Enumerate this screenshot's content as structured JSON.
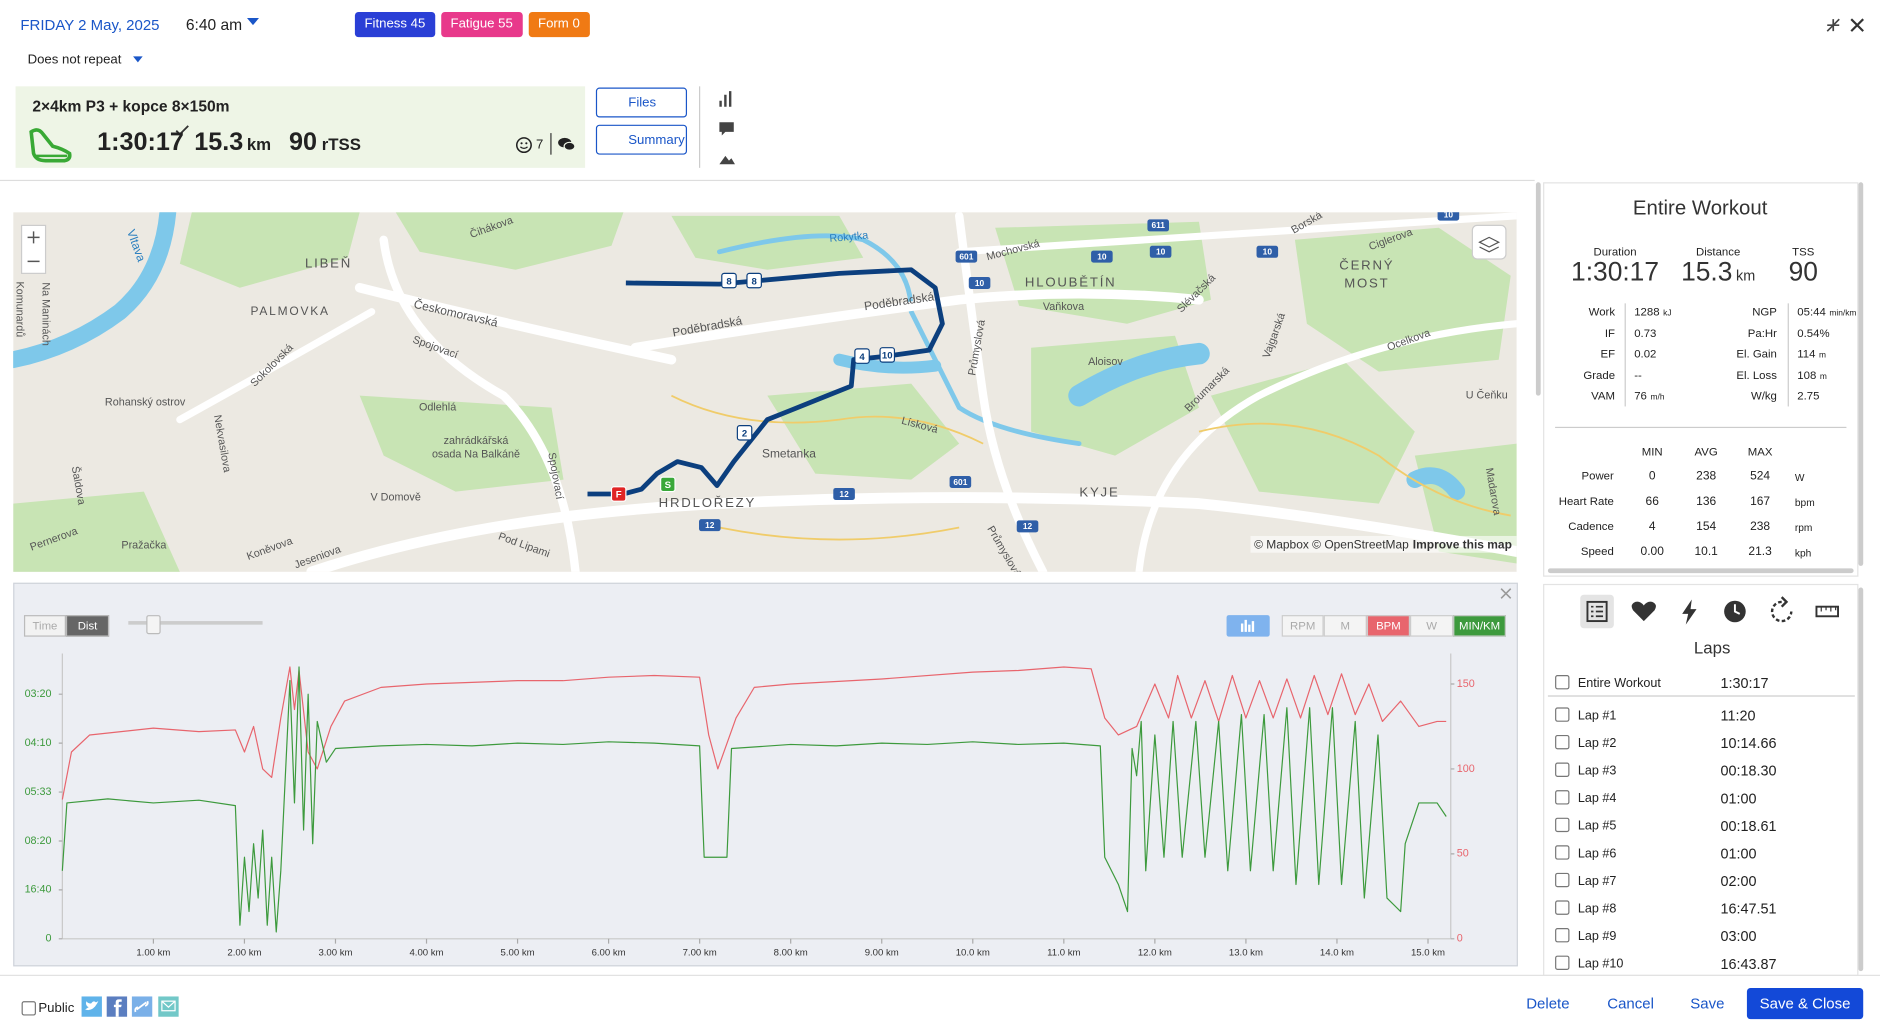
{
  "header": {
    "date": "FRIDAY 2 May, 2025",
    "time": "6:40 am",
    "repeat": "Does not repeat",
    "badges": [
      {
        "label": "Fitness 45",
        "color": "#2a3fd6"
      },
      {
        "label": "Fatigue 55",
        "color": "#e8398b"
      },
      {
        "label": "Form 0",
        "color": "#f07a14"
      }
    ]
  },
  "workout": {
    "title": "2×4km P3 + kopce 8×150m",
    "duration": "1:30:17",
    "distance": "15.3",
    "distance_unit": "km",
    "tss": "90",
    "tss_unit": "rTSS",
    "comments": "7",
    "buttons": [
      "Files",
      "Summary"
    ]
  },
  "map": {
    "labels": [
      "LIBEŇ",
      "PALMOVKA",
      "HLOUBĚTÍN",
      "ČERNÝ",
      "MOST",
      "HRDLOŘEZY",
      "KYJE",
      "Českomoravská",
      "Poděbradská",
      "Poděbradská",
      "Spojovací",
      "Sokolovská",
      "Rohanský ostrov",
      "Odlehlá",
      "zahrádkářská",
      "osada Na Balkáně",
      "Smetanka",
      "Aloisov",
      "Lísková",
      "Mochovská",
      "Vaňkova",
      "Slévačská",
      "Broumarská",
      "Ocelkova",
      "Čihákova",
      "Rokytka",
      "Průmyslová",
      "Koněvova",
      "Pražačka",
      "Jeseniova",
      "Pod Lipami",
      "V Domově",
      "Pernerova",
      "Šaldova",
      "Nekvasilova",
      "U Čeňku",
      "Vltava",
      "Ciglerova",
      "Borská",
      "Madarova",
      "Vajgarská",
      "Spojovací",
      "Komunardů",
      "Na Maninách",
      "Průmyslová"
    ],
    "route_markers": [
      "8",
      "8",
      "4",
      "10",
      "2",
      "F",
      "S"
    ],
    "road_shields": [
      "611",
      "601",
      "10",
      "10",
      "10",
      "601",
      "12",
      "12",
      "12",
      "10",
      "10"
    ],
    "attribution": "© Mapbox © OpenStreetMap",
    "improve": "Improve this map"
  },
  "chart_data": {
    "type": "line",
    "x_modes": [
      "Time",
      "Dist"
    ],
    "toggles": [
      "RPM",
      "M",
      "W"
    ],
    "series": [
      {
        "name": "MIN/KM",
        "color": "#3d9a3d",
        "x": [
          0,
          0.05,
          0.5,
          1.0,
          1.5,
          1.9,
          1.95,
          2.0,
          2.05,
          2.1,
          2.15,
          2.2,
          2.25,
          2.3,
          2.35,
          2.4,
          2.45,
          2.5,
          2.55,
          2.6,
          2.65,
          2.7,
          2.75,
          2.8,
          2.9,
          3.0,
          3.5,
          4.0,
          4.5,
          5.0,
          5.5,
          6.0,
          6.5,
          7.0,
          7.05,
          7.3,
          7.35,
          8.0,
          8.5,
          9.0,
          9.5,
          10.0,
          10.5,
          11.0,
          11.4,
          11.45,
          11.6,
          11.7,
          11.75,
          11.8,
          11.85,
          11.9,
          12.0,
          12.1,
          12.2,
          12.3,
          12.45,
          12.55,
          12.7,
          12.8,
          12.95,
          13.05,
          13.2,
          13.3,
          13.45,
          13.55,
          13.7,
          13.8,
          13.95,
          14.05,
          14.2,
          14.3,
          14.45,
          14.55,
          14.7,
          14.75,
          14.9,
          15.1,
          15.2
        ],
        "values": [
          5,
          10,
          10.3,
          10,
          10.2,
          9.8,
          1,
          6,
          2,
          7,
          3,
          8,
          1,
          6,
          0.5,
          5,
          12,
          19,
          10,
          20,
          8,
          18,
          7,
          16,
          13,
          14,
          14.2,
          14.3,
          14.2,
          14.4,
          14.3,
          14.5,
          14.4,
          14.2,
          6,
          6,
          14,
          14.3,
          14.2,
          14.4,
          14.3,
          14.5,
          14.3,
          14.4,
          14.2,
          6,
          4,
          2,
          14,
          12,
          16,
          5,
          15,
          6,
          16,
          6,
          16,
          6,
          16,
          5,
          16.5,
          5,
          16.5,
          5,
          17,
          4,
          17,
          4,
          17,
          4,
          16,
          3,
          15,
          3,
          2,
          7,
          10,
          10,
          9
        ]
      },
      {
        "name": "BPM",
        "color": "#e8656d",
        "axis": "y2",
        "x": [
          0,
          0.1,
          0.3,
          1.0,
          1.5,
          1.9,
          2.0,
          2.1,
          2.2,
          2.3,
          2.4,
          2.5,
          2.55,
          2.6,
          2.7,
          2.8,
          2.95,
          3.1,
          3.5,
          4.0,
          4.5,
          5.0,
          5.5,
          6.0,
          6.5,
          7.0,
          7.1,
          7.2,
          7.4,
          7.6,
          8.0,
          9.0,
          10.0,
          10.5,
          11.0,
          11.3,
          11.45,
          11.6,
          11.8,
          12.0,
          12.15,
          12.25,
          12.4,
          12.55,
          12.7,
          12.85,
          13.0,
          13.15,
          13.3,
          13.45,
          13.6,
          13.75,
          13.9,
          14.05,
          14.2,
          14.35,
          14.5,
          14.7,
          14.9,
          15.1,
          15.2
        ],
        "values": [
          82,
          110,
          120,
          124,
          122,
          123,
          110,
          125,
          100,
          95,
          130,
          160,
          135,
          158,
          110,
          100,
          125,
          140,
          148,
          150,
          151,
          152,
          152,
          154,
          155,
          154,
          120,
          100,
          130,
          148,
          150,
          153,
          157,
          158,
          160,
          159,
          130,
          120,
          125,
          150,
          130,
          155,
          130,
          152,
          128,
          155,
          130,
          152,
          130,
          153,
          130,
          155,
          132,
          156,
          132,
          150,
          128,
          140,
          125,
          128,
          128
        ]
      }
    ],
    "xlim": [
      0,
      15.25
    ],
    "xticks": [
      {
        "value": 1,
        "label": "1.00 km"
      },
      {
        "value": 2,
        "label": "2.00 km"
      },
      {
        "value": 3,
        "label": "3.00 km"
      },
      {
        "value": 4,
        "label": "4.00 km"
      },
      {
        "value": 5,
        "label": "5.00 km"
      },
      {
        "value": 6,
        "label": "6.00 km"
      },
      {
        "value": 7,
        "label": "7.00 km"
      },
      {
        "value": 8,
        "label": "8.00 km"
      },
      {
        "value": 9,
        "label": "9.00 km"
      },
      {
        "value": 10,
        "label": "10.0 km"
      },
      {
        "value": 11,
        "label": "11.0 km"
      },
      {
        "value": 12,
        "label": "12.0 km"
      },
      {
        "value": 13,
        "label": "13.0 km"
      },
      {
        "value": 14,
        "label": "14.0 km"
      },
      {
        "value": 15,
        "label": "15.0 km"
      }
    ],
    "ylim": [
      0,
      21
    ],
    "yticks": [
      0,
      {
        "value": 3.6,
        "label": "16:40"
      },
      {
        "value": 7.2,
        "label": "08:20"
      },
      {
        "value": 10.8,
        "label": "05:33"
      },
      {
        "value": 14.4,
        "label": "04:10"
      },
      {
        "value": 18,
        "label": "03:20"
      }
    ],
    "y2lim": [
      0,
      168
    ],
    "y2ticks": [
      0,
      50,
      100,
      150
    ]
  },
  "summary": {
    "title": "Entire Workout",
    "headline": [
      {
        "label": "Duration",
        "value": "1:30:17"
      },
      {
        "label": "Distance",
        "value": "15.3",
        "unit": "km"
      },
      {
        "label": "TSS",
        "value": "90"
      }
    ],
    "metrics_left": [
      [
        "Work",
        "1288",
        "kJ"
      ],
      [
        "IF",
        "0.73"
      ],
      [
        "EF",
        "0.02"
      ],
      [
        "Grade",
        "--"
      ],
      [
        "VAM",
        "76",
        "m/h"
      ]
    ],
    "metrics_right": [
      [
        "NGP",
        "05:44",
        "min/km"
      ],
      [
        "Pa:Hr",
        "0.54%"
      ],
      [
        "El. Gain",
        "114",
        "m"
      ],
      [
        "El. Loss",
        "108",
        "m"
      ],
      [
        "W/kg",
        "2.75"
      ]
    ],
    "range_header": [
      "MIN",
      "AVG",
      "MAX"
    ],
    "range_rows": [
      [
        "Power",
        "0",
        "238",
        "524",
        "W"
      ],
      [
        "Heart Rate",
        "66",
        "136",
        "167",
        "bpm"
      ],
      [
        "Cadence",
        "4",
        "154",
        "238",
        "rpm"
      ],
      [
        "Speed",
        "0.00",
        "10.1",
        "21.3",
        "kph"
      ]
    ]
  },
  "laps": {
    "title": "Laps",
    "rows": [
      [
        "Entire Workout",
        "1:30:17"
      ],
      [
        "Lap #1",
        "11:20"
      ],
      [
        "Lap #2",
        "10:14.66"
      ],
      [
        "Lap #3",
        "00:18.30"
      ],
      [
        "Lap #4",
        "01:00"
      ],
      [
        "Lap #5",
        "00:18.61"
      ],
      [
        "Lap #6",
        "01:00"
      ],
      [
        "Lap #7",
        "02:00"
      ],
      [
        "Lap #8",
        "16:47.51"
      ],
      [
        "Lap #9",
        "03:00"
      ],
      [
        "Lap #10",
        "16:43.87"
      ]
    ]
  },
  "footer": {
    "public": "Public",
    "actions": [
      "Delete",
      "Cancel",
      "Save",
      "Save & Close"
    ]
  }
}
